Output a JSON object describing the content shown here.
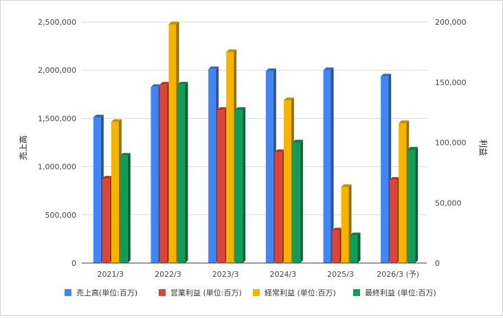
{
  "chart_data": {
    "type": "bar",
    "title": "",
    "categories": [
      "2021/3",
      "2022/3",
      "2023/3",
      "2024/3",
      "2025/3",
      "2026/3 (予)"
    ],
    "ylabel_left": "売上高",
    "ylabel_right": "利益",
    "ylim_left": [
      0,
      2500000
    ],
    "ylim_right": [
      0,
      200000
    ],
    "yticks_left": [
      "0",
      "500,000",
      "1,000,000",
      "1,500,000",
      "2,000,000",
      "2,500,000"
    ],
    "yticks_right": [
      "0",
      "50,000",
      "100,000",
      "150,000",
      "200,000"
    ],
    "grid": true,
    "legend_position": "bottom",
    "series": [
      {
        "name": "売上高(単位:百万)",
        "axis": "left",
        "color": "#4285f4",
        "values": [
          1510000,
          1825000,
          2010000,
          1990000,
          2000000,
          1935000
        ]
      },
      {
        "name": "営業利益 (単位:百万)",
        "axis": "right",
        "color": "#db4437",
        "values": [
          70000,
          148000,
          127000,
          92000,
          27000,
          69000
        ]
      },
      {
        "name": "経常利益 (単位:百万)",
        "axis": "right",
        "color": "#f4b400",
        "values": [
          117000,
          198000,
          175000,
          135000,
          63000,
          116000
        ]
      },
      {
        "name": "最終利益 (単位:百万)",
        "axis": "right",
        "color": "#0f9d58",
        "values": [
          89000,
          148000,
          127000,
          100000,
          23000,
          94000
        ]
      }
    ]
  }
}
